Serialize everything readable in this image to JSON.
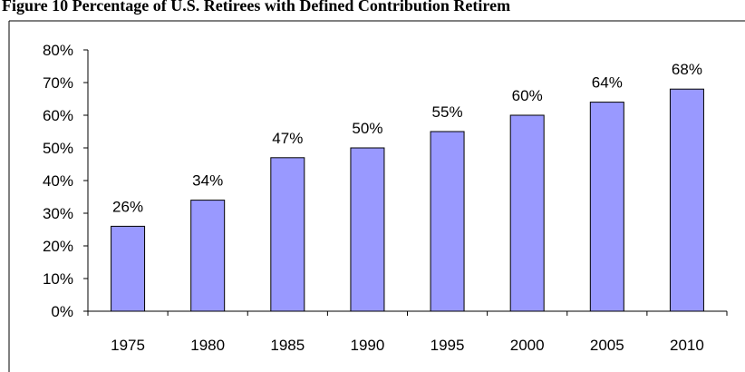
{
  "chart_data": {
    "type": "bar",
    "title": "Figure 10 Percentage of U.S. Retirees with Defined Contribution Retirem",
    "categories": [
      "1975",
      "1980",
      "1985",
      "1990",
      "1995",
      "2000",
      "2005",
      "2010"
    ],
    "values": [
      26,
      34,
      47,
      50,
      55,
      60,
      64,
      68
    ],
    "value_labels": [
      "26%",
      "34%",
      "47%",
      "50%",
      "55%",
      "60%",
      "64%",
      "68%"
    ],
    "color": "#9999ff",
    "ylim": [
      0,
      80
    ],
    "yticks": [
      {
        "value": 0,
        "label": "0%"
      },
      {
        "value": 10,
        "label": "10%"
      },
      {
        "value": 20,
        "label": "20%"
      },
      {
        "value": 30,
        "label": "30%"
      },
      {
        "value": 40,
        "label": "40%"
      },
      {
        "value": 50,
        "label": "50%"
      },
      {
        "value": 60,
        "label": "60%"
      },
      {
        "value": 70,
        "label": "70%"
      },
      {
        "value": 80,
        "label": "80%"
      }
    ],
    "grid": false
  }
}
